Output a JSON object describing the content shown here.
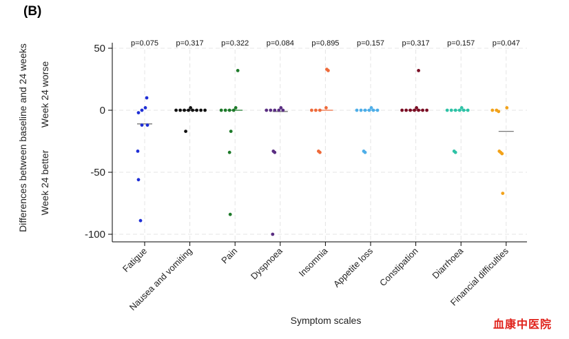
{
  "panel_label": "(B)",
  "watermark": "血康中医院",
  "chart_data": {
    "type": "scatter",
    "title": "",
    "xlabel": "Symptom scales",
    "ylabel": "Differences between baseline and 24 weeks",
    "ylabel_upper": "Week 24 worse",
    "ylabel_lower": "Week 24 better",
    "ylim": [
      -105,
      55
    ],
    "yticks": [
      50,
      0,
      -50,
      -100
    ],
    "grid": true,
    "categories": [
      {
        "name": "Fatigue",
        "p": "p=0.075",
        "color": "#1f2fd6",
        "mean": -11,
        "points": [
          10,
          2,
          0,
          -2,
          -12,
          -12,
          -33,
          -56,
          -89
        ]
      },
      {
        "name": "Nausea and vomiting",
        "p": "p=0.317",
        "color": "#111111",
        "mean": 0,
        "points": [
          0,
          0,
          0,
          0,
          0,
          0,
          2,
          0,
          0,
          -17
        ]
      },
      {
        "name": "Pain",
        "p": "p=0.322",
        "color": "#1e7a2a",
        "mean": 0,
        "points": [
          32,
          0,
          0,
          0,
          2,
          0,
          -17,
          -34,
          -84
        ]
      },
      {
        "name": "Dyspnoea",
        "p": "p=0.084",
        "color": "#5a2e82",
        "mean": -1,
        "points": [
          0,
          0,
          0,
          2,
          0,
          0,
          -34,
          -33,
          -100
        ]
      },
      {
        "name": "Insomnia",
        "p": "p=0.895",
        "color": "#ee6a3a",
        "mean": 0,
        "points": [
          33,
          32,
          0,
          0,
          0,
          2,
          -33,
          -34
        ]
      },
      {
        "name": "Appetite loss",
        "p": "p=0.157",
        "color": "#4eaee8",
        "mean": 0,
        "points": [
          0,
          0,
          0,
          0,
          2,
          0,
          0,
          -33,
          -34
        ]
      },
      {
        "name": "Constipation",
        "p": "p=0.317",
        "color": "#7a0e24",
        "mean": 0,
        "points": [
          32,
          0,
          0,
          0,
          0,
          0,
          2,
          0,
          0
        ]
      },
      {
        "name": "Diarrhoea",
        "p": "p=0.157",
        "color": "#2ec2a6",
        "mean": 0,
        "points": [
          0,
          0,
          0,
          0,
          2,
          0,
          0,
          -33,
          -34
        ]
      },
      {
        "name": "Financial difficulties",
        "p": "p=0.047",
        "color": "#f2a21a",
        "mean": -17,
        "points": [
          0,
          2,
          0,
          -1,
          -33,
          -34,
          -35,
          -67
        ]
      }
    ]
  }
}
